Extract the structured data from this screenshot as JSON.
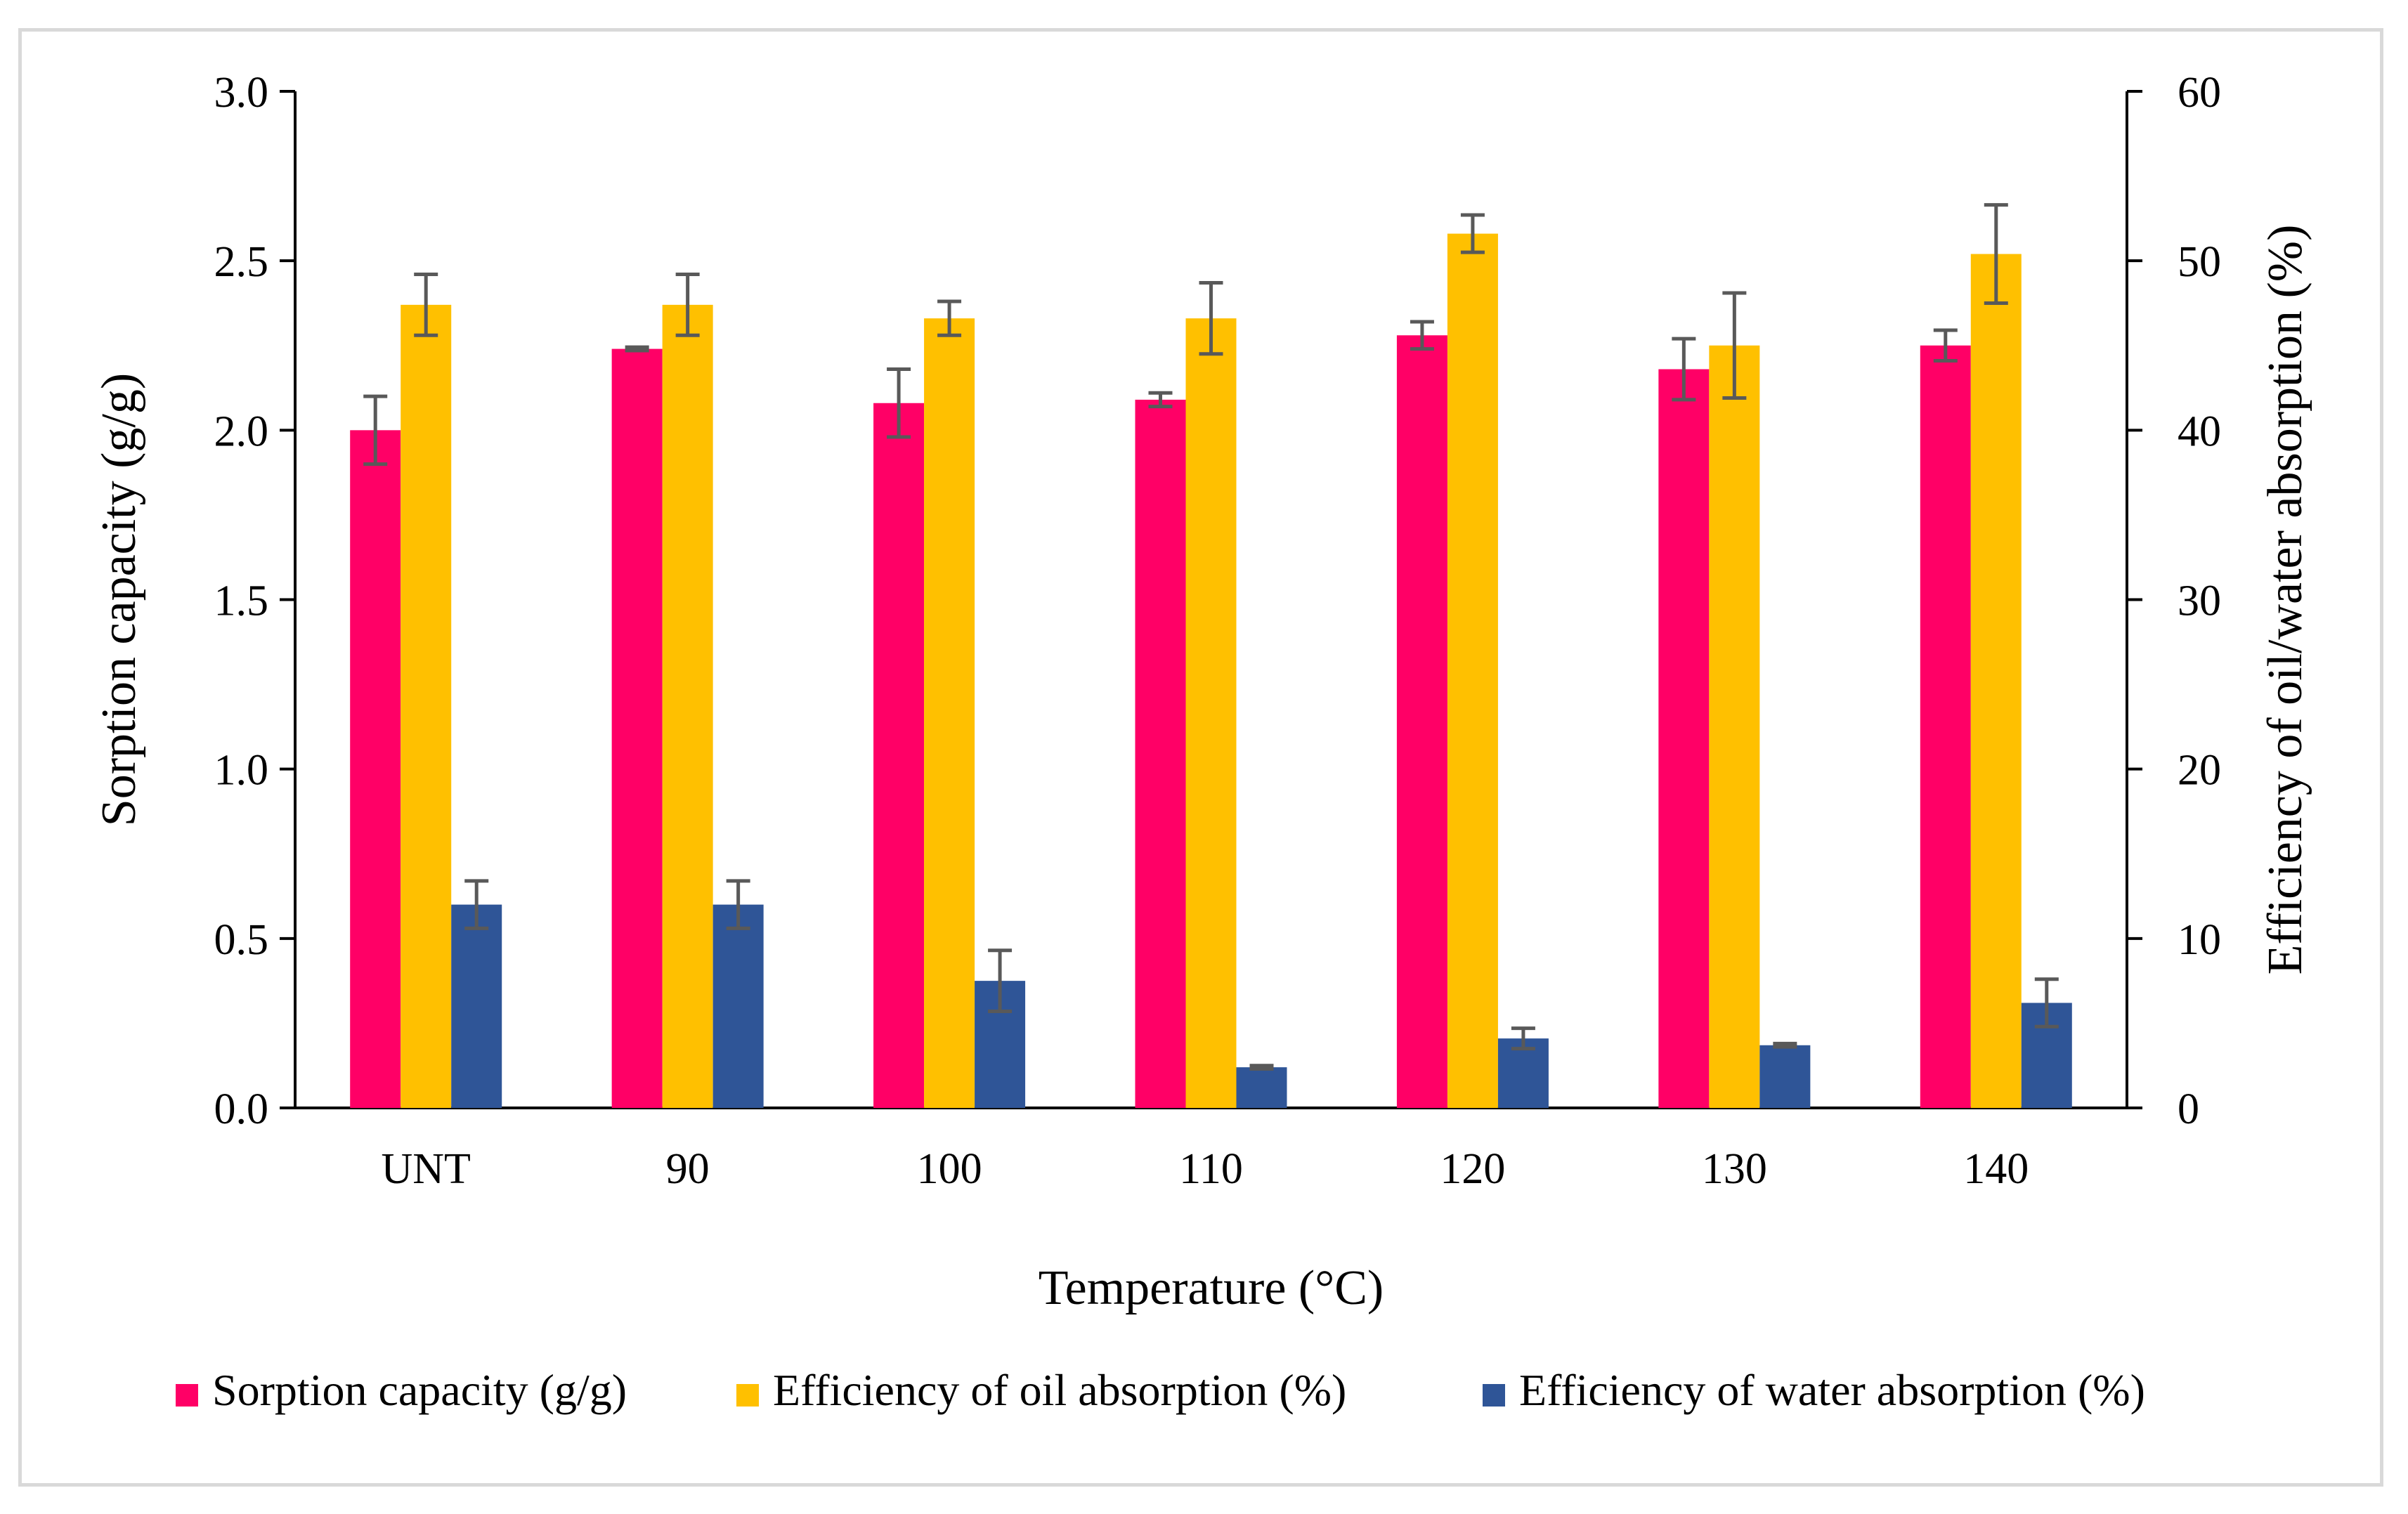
{
  "chart_data": {
    "type": "bar",
    "title": "",
    "xlabel": "Temperature (°C)",
    "ylabel": "Sorption capacity (g/g)",
    "y2label": "Efficiency of oil/water absorption (%)",
    "categories": [
      "UNT",
      "90",
      "100",
      "110",
      "120",
      "130",
      "140"
    ],
    "ylim": [
      0,
      3.0
    ],
    "y2lim": [
      0,
      60
    ],
    "yticks": [
      "0.0",
      "0.5",
      "1.0",
      "1.5",
      "2.0",
      "2.5",
      "3.0"
    ],
    "y2ticks": [
      "0",
      "10",
      "20",
      "30",
      "40",
      "50",
      "60"
    ],
    "grid": false,
    "legend_position": "bottom",
    "series": [
      {
        "name": "Sorption capacity (g/g)",
        "axis": "left",
        "color": "#ff0066",
        "values": [
          2.0,
          2.24,
          2.08,
          2.09,
          2.28,
          2.18,
          2.25
        ],
        "errors": [
          0.1,
          0.005,
          0.1,
          0.02,
          0.04,
          0.09,
          0.045
        ]
      },
      {
        "name": "Efficiency of oil absorption (%)",
        "axis": "right",
        "color": "#ffc000",
        "values": [
          47.4,
          47.4,
          46.6,
          46.6,
          51.6,
          45.0,
          50.4
        ],
        "errors": [
          1.8,
          1.8,
          1.0,
          2.1,
          1.1,
          3.1,
          2.9
        ]
      },
      {
        "name": "Efficiency of water absorption (%)",
        "axis": "right",
        "color": "#2f5597",
        "values": [
          12.0,
          12.0,
          7.5,
          2.4,
          4.1,
          3.7,
          6.2
        ],
        "errors": [
          1.4,
          1.4,
          1.8,
          0.1,
          0.6,
          0.1,
          1.4
        ]
      }
    ],
    "error_bar_color": "#595959"
  }
}
